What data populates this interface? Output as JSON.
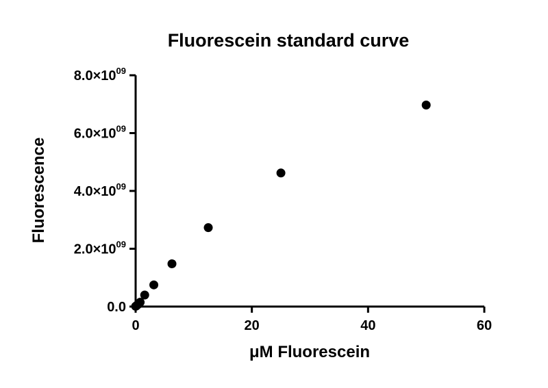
{
  "chart_data": {
    "type": "scatter",
    "title": "Fluorescein standard curve",
    "xlabel": "μM Fluorescein",
    "ylabel": "Fluorescence",
    "xlim": [
      0,
      60
    ],
    "ylim": [
      0,
      8000000000
    ],
    "x_ticks": [
      {
        "value": 0,
        "label": "0"
      },
      {
        "value": 20,
        "label": "20"
      },
      {
        "value": 40,
        "label": "40"
      },
      {
        "value": 60,
        "label": "60"
      }
    ],
    "y_ticks": [
      {
        "value": 0,
        "label": "0.0",
        "exp": ""
      },
      {
        "value": 2000000000,
        "label": "2.0×10",
        "exp": "09"
      },
      {
        "value": 4000000000,
        "label": "4.0×10",
        "exp": "09"
      },
      {
        "value": 6000000000,
        "label": "6.0×10",
        "exp": "09"
      },
      {
        "value": 8000000000,
        "label": "8.0×10",
        "exp": "09"
      }
    ],
    "grid": false,
    "series": [
      {
        "x": [
          0,
          0.1,
          0.2,
          0.39,
          0.78,
          1.56,
          3.13,
          6.25,
          12.5,
          25,
          50
        ],
        "y": [
          10000000,
          20000000,
          40000000,
          70000000,
          150000000,
          400000000,
          750000000,
          1480000000,
          2730000000,
          4620000000,
          6970000000
        ]
      }
    ]
  }
}
